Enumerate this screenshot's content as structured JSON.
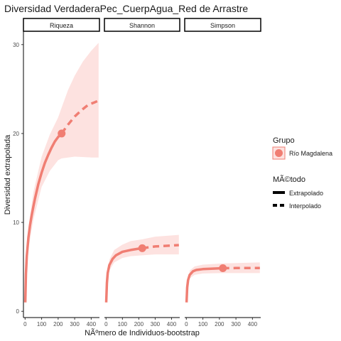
{
  "chart_data": {
    "type": "line",
    "title": "Diversidad VerdaderaPec_CuerpAgua_Red de Arrastre",
    "xlabel": "NÃºmero de Individuos-bootstrap",
    "ylabel": "Diversidad extrapolada",
    "x_ticks": [
      "0",
      "100",
      "200",
      "300",
      "400"
    ],
    "y_ticks": [
      "0",
      "10",
      "20",
      "30"
    ],
    "xlim": [
      -10,
      450
    ],
    "ylim": [
      -0.7,
      31.5
    ],
    "observed_x": 221,
    "facets": [
      {
        "label": "Riqueza",
        "observed": 20.0,
        "interpolated": [
          [
            1,
            1.0
          ],
          [
            5,
            4.2
          ],
          [
            10,
            6.2
          ],
          [
            20,
            8.3
          ],
          [
            30,
            9.7
          ],
          [
            40,
            10.8
          ],
          [
            50,
            11.8
          ],
          [
            60,
            12.7
          ],
          [
            70,
            13.5
          ],
          [
            80,
            14.3
          ],
          [
            100,
            15.6
          ],
          [
            120,
            16.7
          ],
          [
            140,
            17.6
          ],
          [
            160,
            18.4
          ],
          [
            180,
            19.1
          ],
          [
            200,
            19.6
          ],
          [
            221,
            20.0
          ]
        ],
        "extrapolated": [
          [
            221,
            20.0
          ],
          [
            260,
            21.0
          ],
          [
            300,
            21.9
          ],
          [
            340,
            22.6
          ],
          [
            380,
            23.2
          ],
          [
            420,
            23.5
          ],
          [
            445,
            23.7
          ]
        ],
        "ci_lower": [
          [
            1,
            1.0
          ],
          [
            20,
            7.0
          ],
          [
            50,
            10.3
          ],
          [
            100,
            14.0
          ],
          [
            150,
            15.8
          ],
          [
            200,
            17.0
          ],
          [
            221,
            17.2
          ],
          [
            300,
            17.4
          ],
          [
            400,
            17.3
          ],
          [
            445,
            17.3
          ]
        ],
        "ci_upper": [
          [
            1,
            1.0
          ],
          [
            20,
            9.4
          ],
          [
            50,
            13.4
          ],
          [
            100,
            17.4
          ],
          [
            150,
            19.9
          ],
          [
            200,
            21.8
          ],
          [
            221,
            22.9
          ],
          [
            260,
            24.9
          ],
          [
            300,
            26.5
          ],
          [
            350,
            28.1
          ],
          [
            400,
            29.3
          ],
          [
            445,
            30.2
          ]
        ]
      },
      {
        "label": "Shannon",
        "observed": 7.1,
        "interpolated": [
          [
            1,
            1.0
          ],
          [
            5,
            3.2
          ],
          [
            10,
            4.3
          ],
          [
            20,
            5.2
          ],
          [
            40,
            5.9
          ],
          [
            60,
            6.3
          ],
          [
            100,
            6.7
          ],
          [
            150,
            6.9
          ],
          [
            200,
            7.05
          ],
          [
            221,
            7.1
          ]
        ],
        "extrapolated": [
          [
            221,
            7.1
          ],
          [
            260,
            7.2
          ],
          [
            300,
            7.3
          ],
          [
            350,
            7.35
          ],
          [
            400,
            7.4
          ],
          [
            445,
            7.45
          ]
        ],
        "ci_lower": [
          [
            1,
            1.0
          ],
          [
            20,
            4.6
          ],
          [
            50,
            5.5
          ],
          [
            100,
            6.0
          ],
          [
            150,
            6.2
          ],
          [
            221,
            6.3
          ],
          [
            300,
            6.4
          ],
          [
            445,
            6.4
          ]
        ],
        "ci_upper": [
          [
            1,
            1.0
          ],
          [
            20,
            5.8
          ],
          [
            50,
            6.9
          ],
          [
            100,
            7.5
          ],
          [
            150,
            7.9
          ],
          [
            221,
            8.1
          ],
          [
            300,
            8.4
          ],
          [
            445,
            8.6
          ]
        ]
      },
      {
        "label": "Simpson",
        "observed": 4.85,
        "interpolated": [
          [
            1,
            1.0
          ],
          [
            5,
            2.7
          ],
          [
            10,
            3.5
          ],
          [
            20,
            4.1
          ],
          [
            40,
            4.5
          ],
          [
            60,
            4.65
          ],
          [
            100,
            4.75
          ],
          [
            150,
            4.8
          ],
          [
            221,
            4.85
          ]
        ],
        "extrapolated": [
          [
            221,
            4.85
          ],
          [
            300,
            4.87
          ],
          [
            400,
            4.88
          ],
          [
            445,
            4.88
          ]
        ],
        "ci_lower": [
          [
            1,
            1.0
          ],
          [
            20,
            3.7
          ],
          [
            50,
            4.1
          ],
          [
            100,
            4.25
          ],
          [
            221,
            4.3
          ],
          [
            445,
            4.3
          ]
        ],
        "ci_upper": [
          [
            1,
            1.0
          ],
          [
            20,
            4.6
          ],
          [
            50,
            5.05
          ],
          [
            100,
            5.25
          ],
          [
            221,
            5.4
          ],
          [
            445,
            5.5
          ]
        ]
      }
    ],
    "legend": {
      "position": "right",
      "grupo_title": "Grupo",
      "grupo_item": "Río Magdalena",
      "metodo_title": "MÃ©todo",
      "metodo_items": [
        "Extrapolado",
        "Interpolado"
      ]
    },
    "colors": {
      "line": "#F07E73",
      "ribbon": "#FDE2E0",
      "text": "#1a1a1a",
      "tick_text": "#4d4d4d"
    },
    "grid": false
  }
}
